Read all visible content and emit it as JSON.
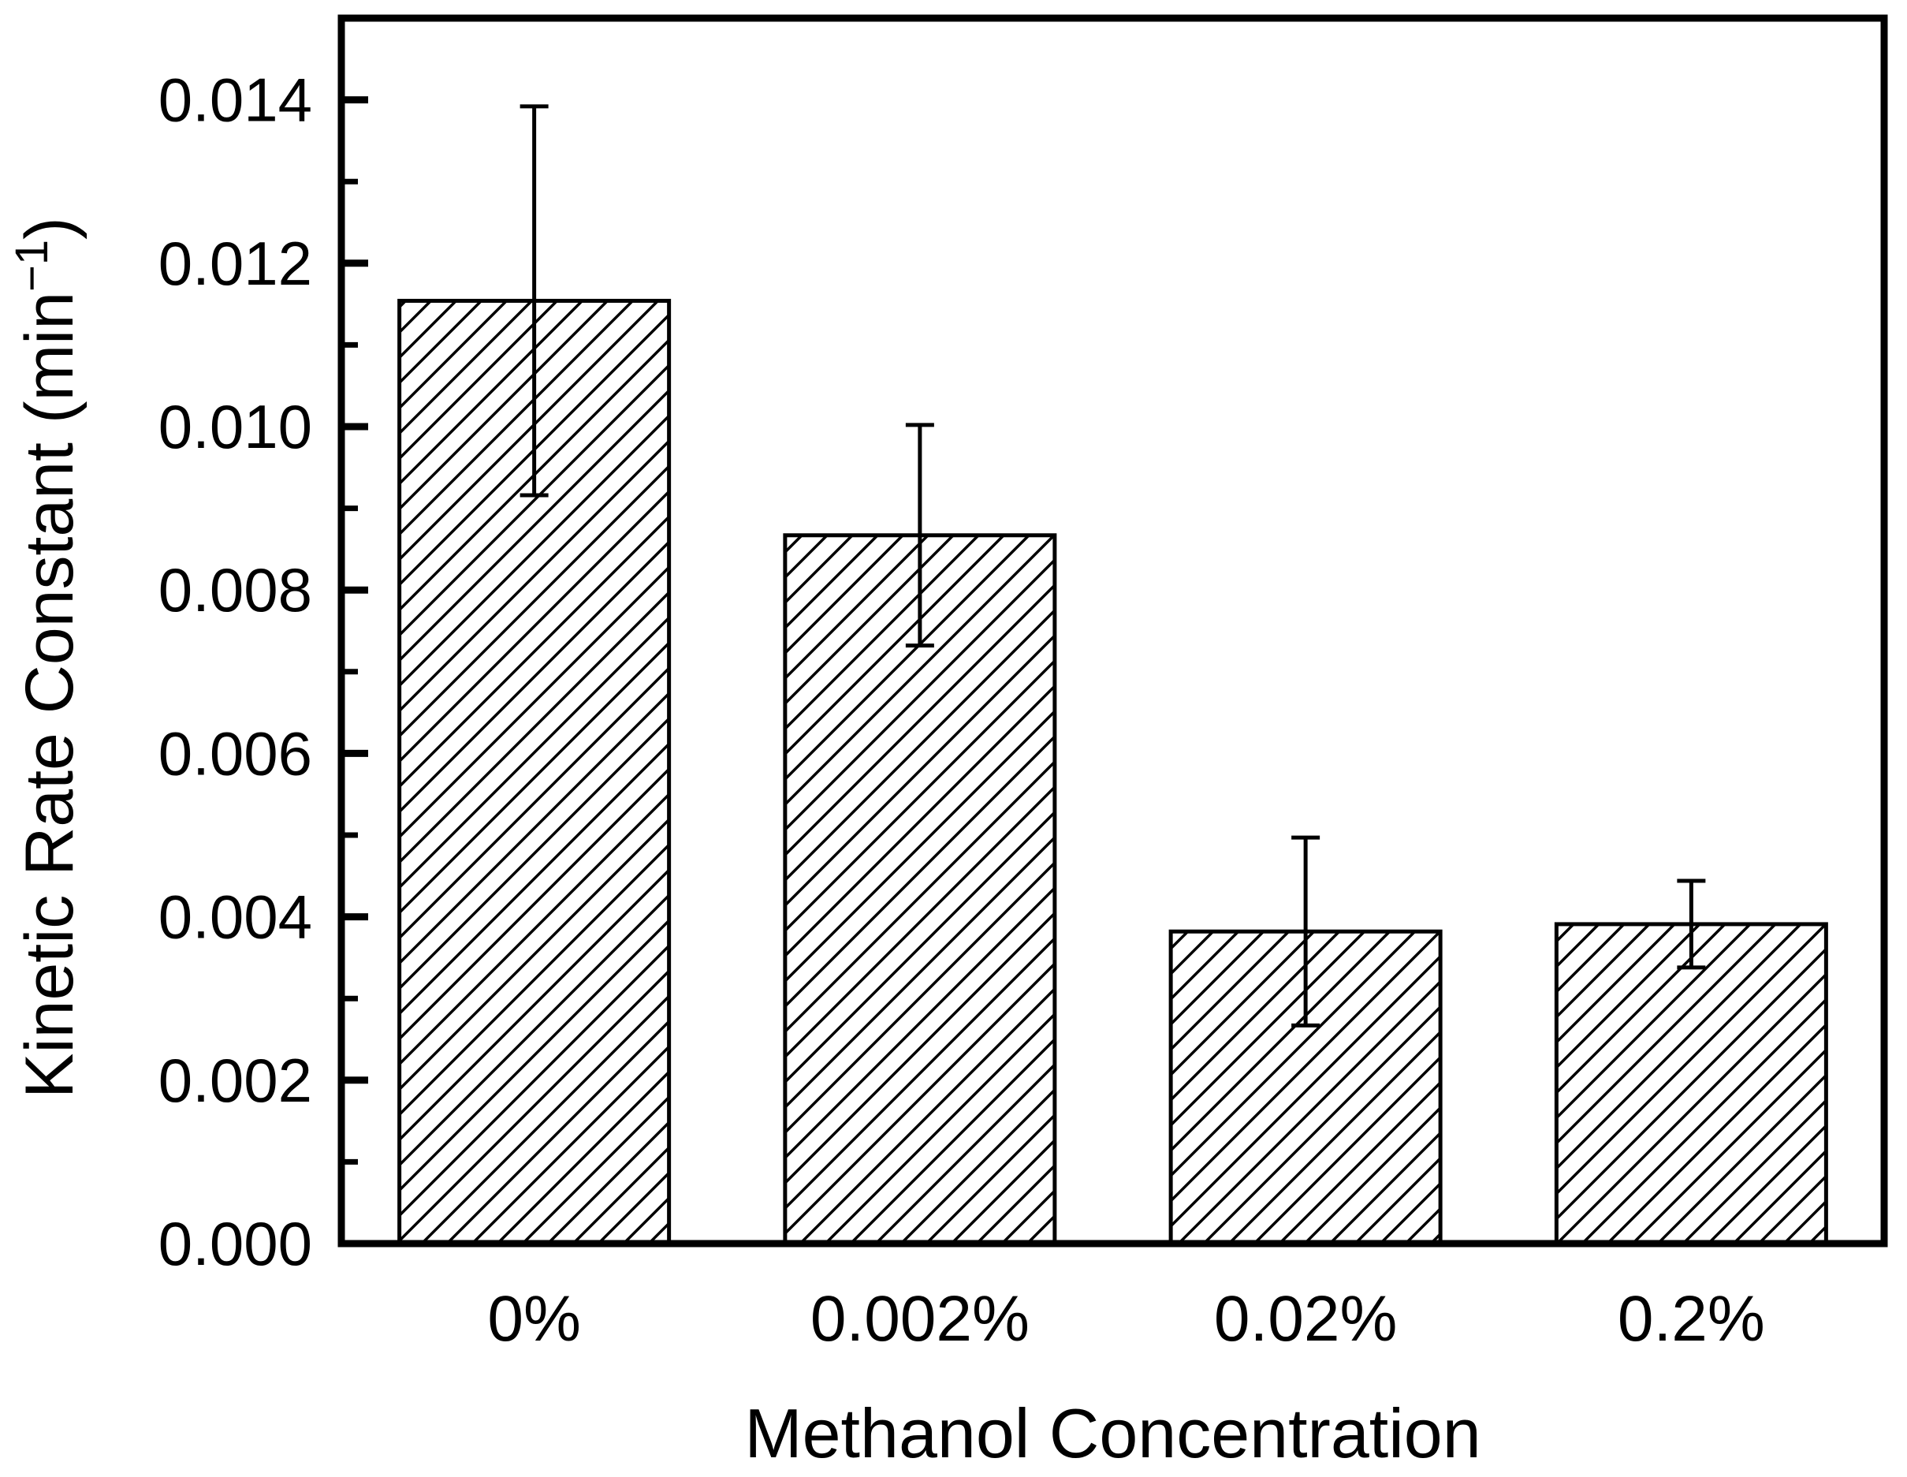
{
  "page": {
    "background_color": "#ffffff",
    "ink_color": "#000000"
  },
  "chart_data": {
    "type": "bar",
    "title": "",
    "xlabel": "Methanol Concentration",
    "ylabel": "Kinetic Rate Constant (min⁻¹)",
    "ylabel_parts": {
      "base": "Kinetic Rate Constant (min",
      "sup": "−1",
      "end": ")"
    },
    "categories": [
      "0%",
      "0.002%",
      "0.02%",
      "0.2%"
    ],
    "values": [
      0.01154,
      0.00867,
      0.00382,
      0.00391
    ],
    "errors": [
      0.00238,
      0.00135,
      0.00115,
      0.00053
    ],
    "ylim": [
      0,
      0.015
    ],
    "y_major_tick_step": 0.002,
    "y_minor_tick_step": 0.001,
    "y_tick_labels": [
      "0.000",
      "0.002",
      "0.004",
      "0.006",
      "0.008",
      "0.010",
      "0.012",
      "0.014"
    ],
    "grid": false,
    "legend": false,
    "bar_fill": "#ffffff",
    "bar_hatch": "diagonal-forward",
    "error_bars": "symmetric-caps"
  }
}
